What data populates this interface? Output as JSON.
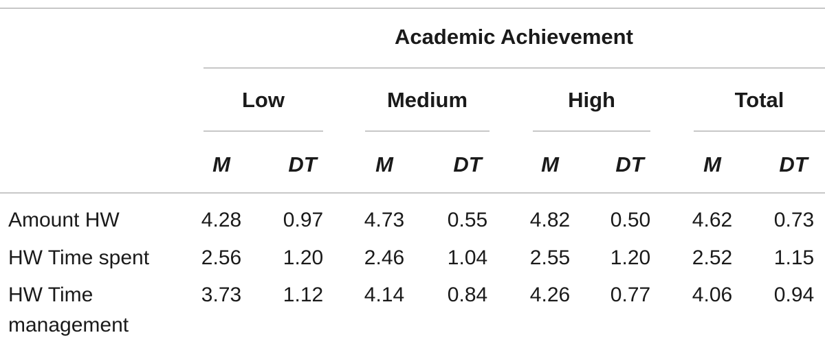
{
  "table": {
    "spanner": "Academic Achievement",
    "groups": [
      "Low",
      "Medium",
      "High",
      "Total"
    ],
    "stats": [
      "M",
      "DT"
    ],
    "rows": [
      {
        "label": [
          "Amount HW"
        ],
        "values": [
          "4.28",
          "0.97",
          "4.73",
          "0.55",
          "4.82",
          "0.50",
          "4.62",
          "0.73"
        ]
      },
      {
        "label": [
          "HW Time spent"
        ],
        "values": [
          "2.56",
          "1.20",
          "2.46",
          "1.04",
          "2.55",
          "1.20",
          "2.52",
          "1.15"
        ]
      },
      {
        "label": [
          "HW Time",
          "management"
        ],
        "values": [
          "3.73",
          "1.12",
          "4.14",
          "0.84",
          "4.26",
          "0.77",
          "4.06",
          "0.94"
        ]
      }
    ]
  }
}
